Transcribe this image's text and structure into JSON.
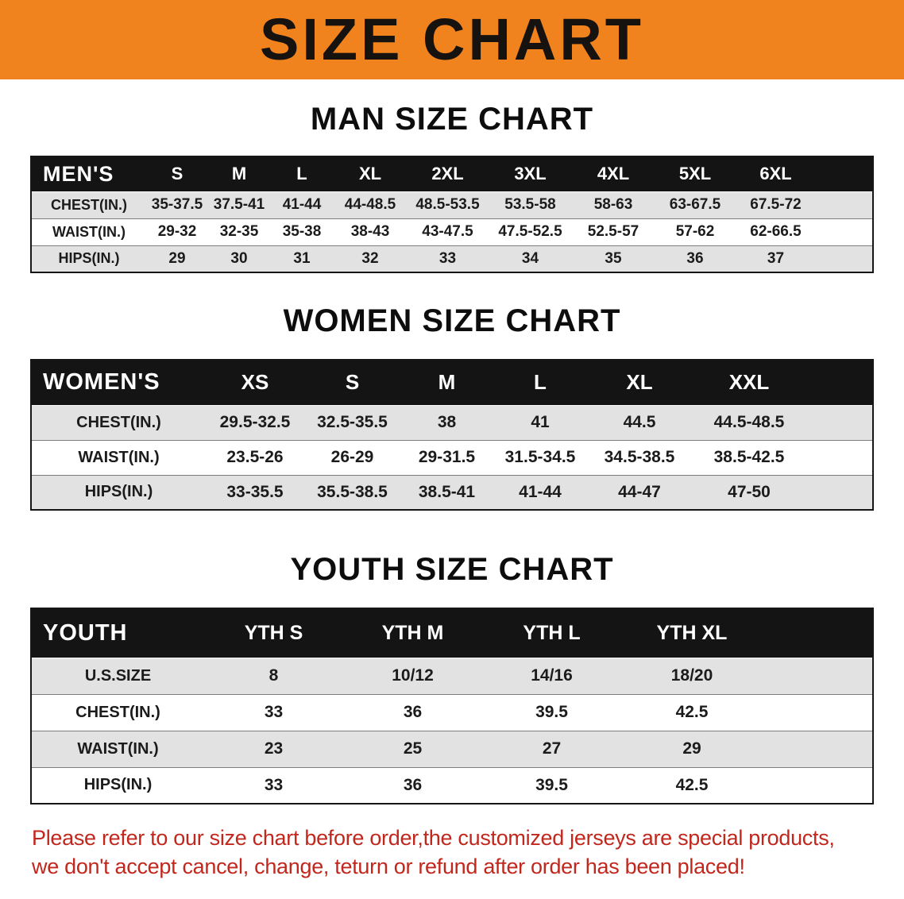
{
  "banner": {
    "title": "SIZE CHART",
    "bg_color": "#f0831e",
    "text_color": "#151210"
  },
  "sections": [
    {
      "heading": "MAN SIZE CHART",
      "table": {
        "corner_label": "MEN'S",
        "columns": [
          "S",
          "M",
          "L",
          "XL",
          "2XL",
          "3XL",
          "4XL",
          "5XL",
          "6XL"
        ],
        "rows": [
          {
            "label": "CHEST(IN.)",
            "values": [
              "35-37.5",
              "37.5-41",
              "41-44",
              "44-48.5",
              "48.5-53.5",
              "53.5-58",
              "58-63",
              "63-67.5",
              "67.5-72"
            ]
          },
          {
            "label": "WAIST(IN.)",
            "values": [
              "29-32",
              "32-35",
              "35-38",
              "38-43",
              "43-47.5",
              "47.5-52.5",
              "52.5-57",
              "57-62",
              "62-66.5"
            ]
          },
          {
            "label": "HIPS(IN.)",
            "values": [
              "29",
              "30",
              "31",
              "32",
              "33",
              "34",
              "35",
              "36",
              "37"
            ]
          }
        ]
      }
    },
    {
      "heading": "WOMEN SIZE CHART",
      "table": {
        "corner_label": "WOMEN'S",
        "columns": [
          "XS",
          "S",
          "M",
          "L",
          "XL",
          "XXL"
        ],
        "rows": [
          {
            "label": "CHEST(IN.)",
            "values": [
              "29.5-32.5",
              "32.5-35.5",
              "38",
              "41",
              "44.5",
              "44.5-48.5"
            ]
          },
          {
            "label": "WAIST(IN.)",
            "values": [
              "23.5-26",
              "26-29",
              "29-31.5",
              "31.5-34.5",
              "34.5-38.5",
              "38.5-42.5"
            ]
          },
          {
            "label": "HIPS(IN.)",
            "values": [
              "33-35.5",
              "35.5-38.5",
              "38.5-41",
              "41-44",
              "44-47",
              "47-50"
            ]
          }
        ]
      }
    },
    {
      "heading": "YOUTH SIZE CHART",
      "table": {
        "corner_label": "YOUTH",
        "columns": [
          "YTH S",
          "YTH M",
          "YTH L",
          "YTH XL"
        ],
        "rows": [
          {
            "label": "U.S.SIZE",
            "values": [
              "8",
              "10/12",
              "14/16",
              "18/20"
            ]
          },
          {
            "label": "CHEST(IN.)",
            "values": [
              "33",
              "36",
              "39.5",
              "42.5"
            ]
          },
          {
            "label": "WAIST(IN.)",
            "values": [
              "23",
              "25",
              "27",
              "29"
            ]
          },
          {
            "label": "HIPS(IN.)",
            "values": [
              "33",
              "36",
              "39.5",
              "42.5"
            ]
          }
        ]
      }
    }
  ],
  "footer": {
    "text_color": "#c1271d",
    "lines": [
      "Please refer to our size chart before order,the customized jerseys are special products,",
      "we don't accept cancel, change, teturn or refund after order has been placed!"
    ]
  }
}
